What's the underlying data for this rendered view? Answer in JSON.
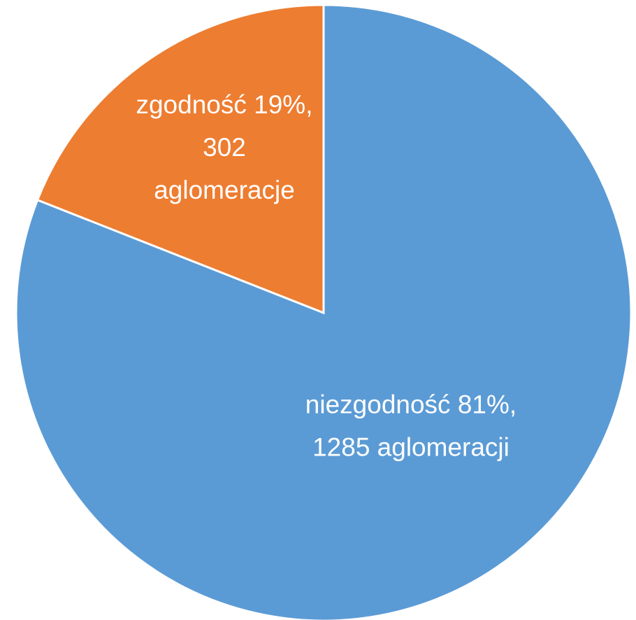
{
  "chart_data": {
    "type": "pie",
    "labels": [
      "niezgodność 81%, 1285 aglomeracji",
      "zgodność 19%, 302 aglomeracje"
    ],
    "values": [
      1285,
      302
    ],
    "colors": [
      "#5b9bd5",
      "#ed7d31"
    ],
    "start_angle": 0,
    "direction": "clockwise"
  }
}
